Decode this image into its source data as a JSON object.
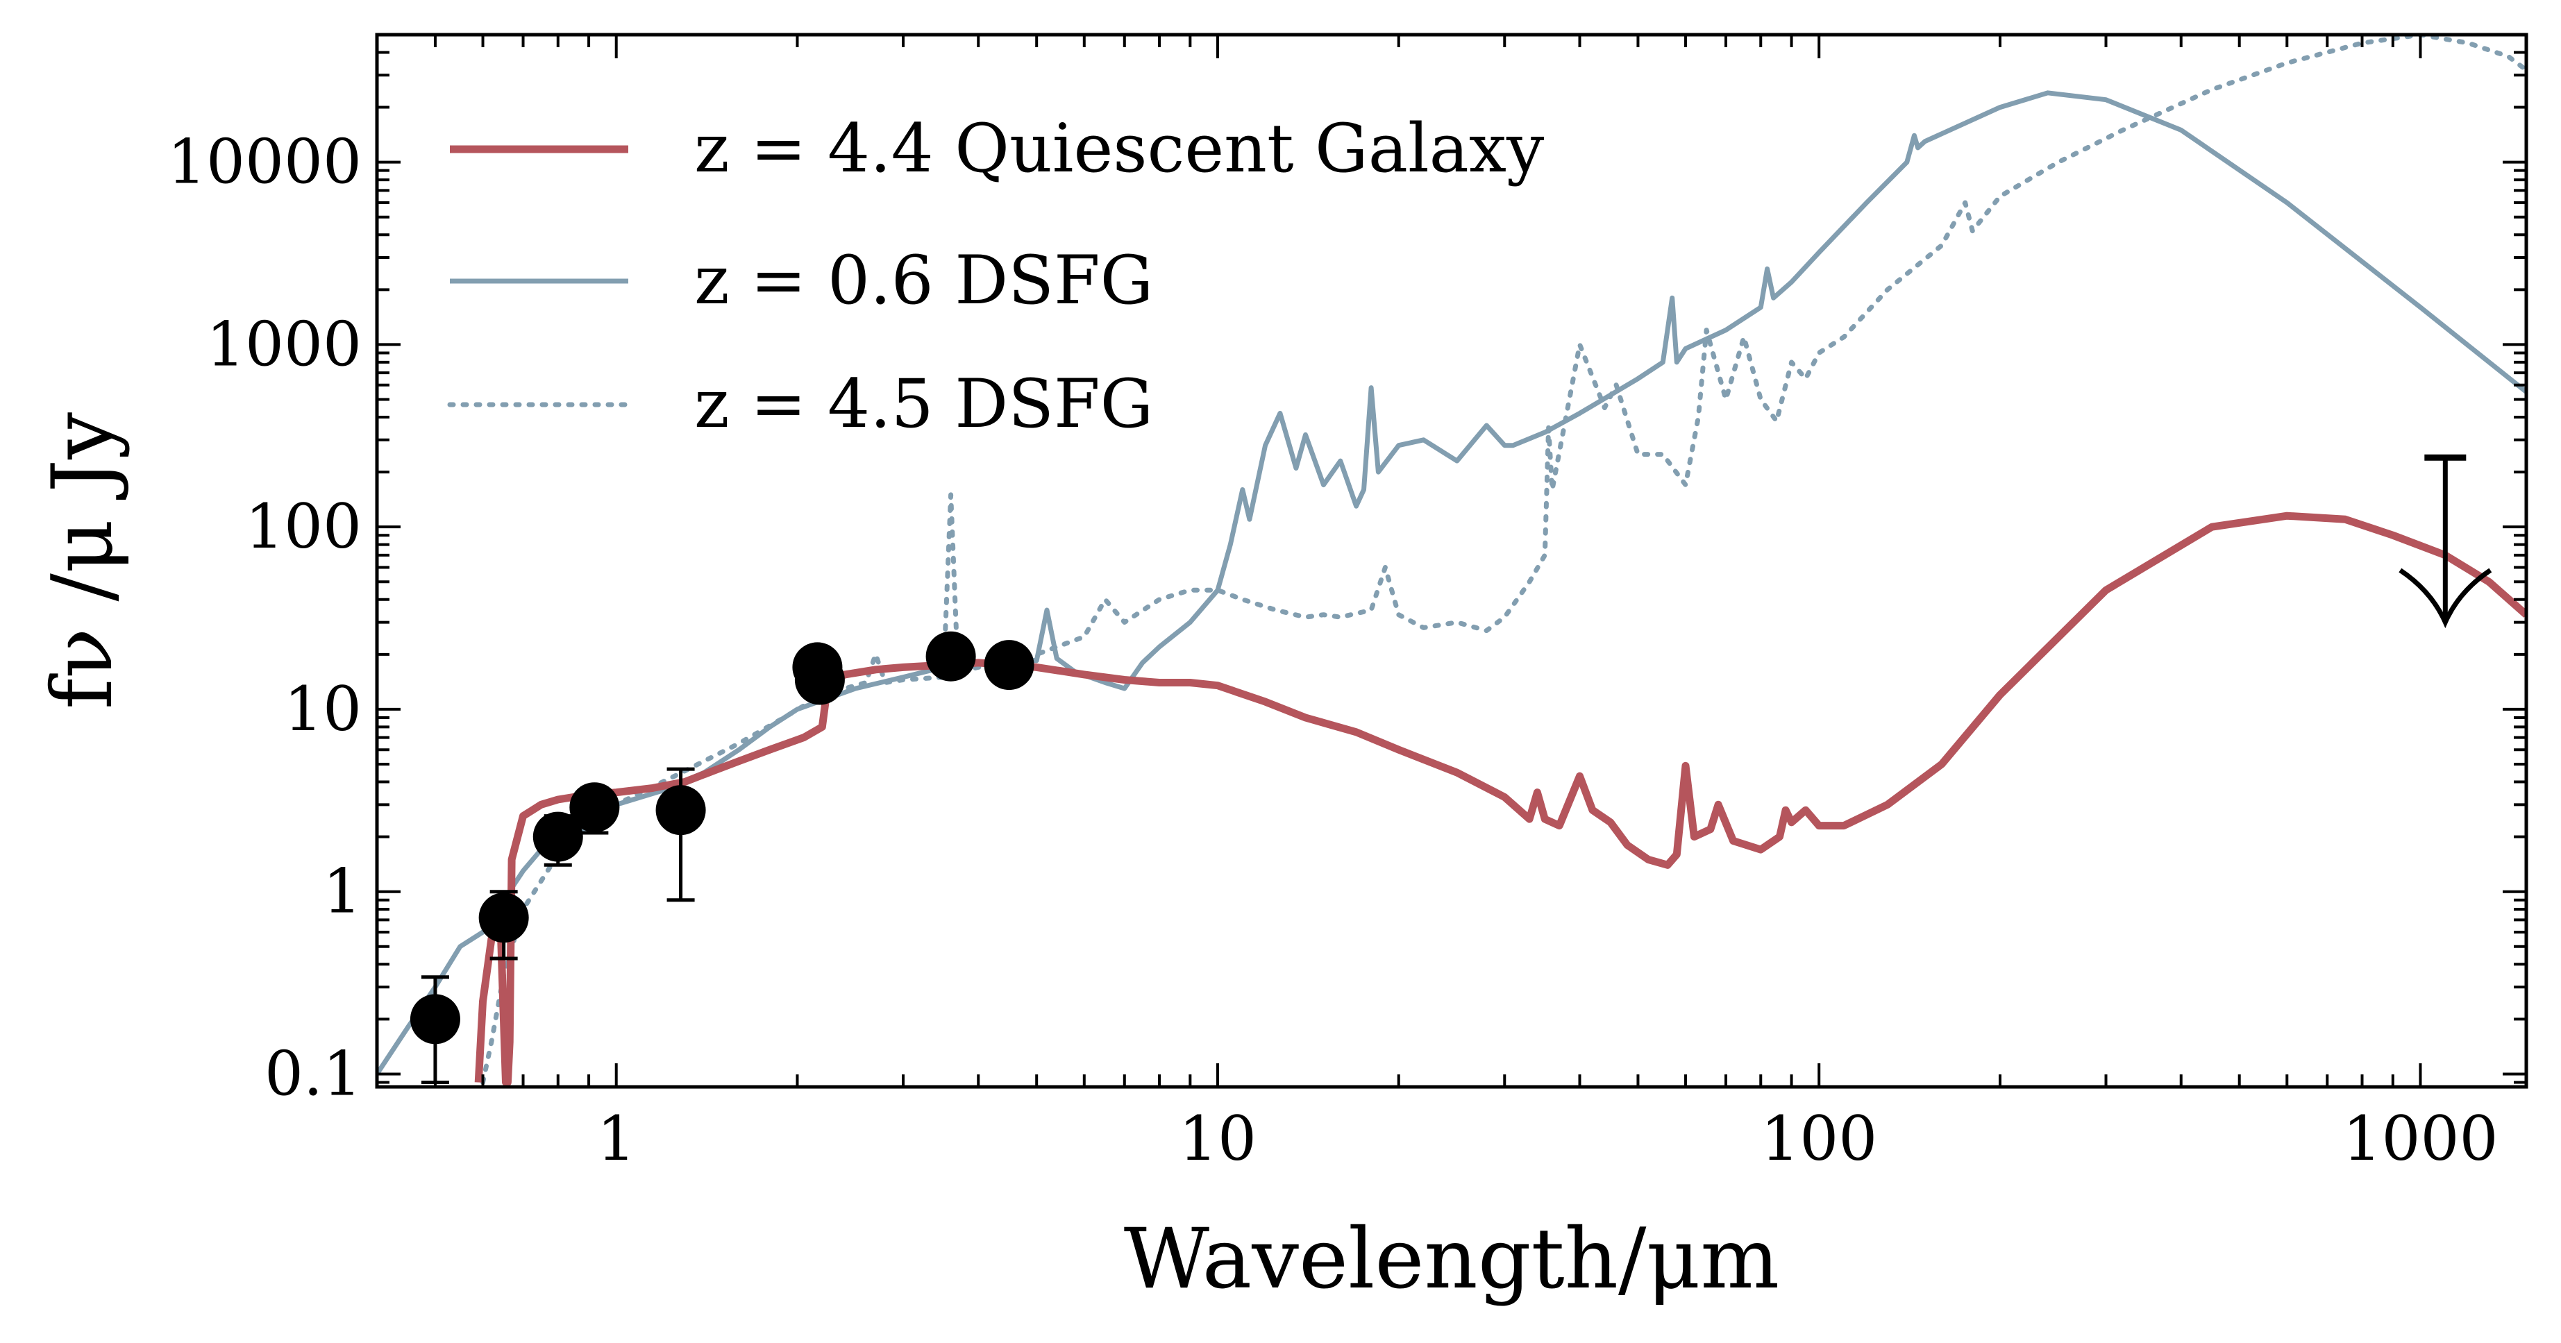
{
  "chart_data": {
    "type": "line",
    "title": "",
    "xlabel": "Wavelength/μm",
    "ylabel": "fν /μ Jy",
    "xscale": "log",
    "yscale": "log",
    "xlim": [
      0.4,
      1500
    ],
    "ylim": [
      0.085,
      50000
    ],
    "x_tick_labels": [
      {
        "value": 1,
        "label": "1"
      },
      {
        "value": 10,
        "label": "10"
      },
      {
        "value": 100,
        "label": "100"
      },
      {
        "value": 1000,
        "label": "1000"
      }
    ],
    "y_tick_labels": [
      {
        "value": 0.1,
        "label": "0.1"
      },
      {
        "value": 1,
        "label": "1"
      },
      {
        "value": 10,
        "label": "10"
      },
      {
        "value": 100,
        "label": "100"
      },
      {
        "value": 1000,
        "label": "1000"
      },
      {
        "value": 10000,
        "label": "10000"
      }
    ],
    "legend_position": "top-left",
    "series": [
      {
        "name": "z = 4.4 Quiescent Galaxy",
        "legend_label": "z = 4.4 Quiescent Galaxy",
        "color": "#b5555c",
        "style": "solid",
        "x": [
          0.59,
          0.6,
          0.62,
          0.64,
          0.655,
          0.66,
          0.665,
          0.67,
          0.7,
          0.75,
          0.8,
          0.9,
          1.0,
          1.15,
          1.3,
          1.45,
          1.6,
          1.8,
          2.05,
          2.2,
          2.25,
          2.4,
          2.7,
          3.0,
          3.5,
          4.0,
          4.5,
          5.0,
          6.0,
          7.0,
          8.0,
          9.0,
          10.0,
          12.0,
          14.0,
          17.0,
          20.0,
          25.0,
          30.0,
          33.0,
          34.0,
          35.0,
          37.0,
          40.0,
          42.0,
          45.0,
          48.0,
          52.0,
          56.0,
          58.0,
          60.0,
          62.0,
          66.0,
          68.0,
          72.0,
          80.0,
          86.0,
          88.0,
          90.0,
          95.0,
          100.0,
          110.0,
          130.0,
          160.0,
          200.0,
          300.0,
          450.0,
          600.0,
          750.0,
          900.0,
          1100.0,
          1300.0,
          1500.0
        ],
        "y": [
          0.09,
          0.25,
          0.55,
          0.9,
          0.09,
          0.09,
          0.15,
          1.5,
          2.6,
          3.0,
          3.2,
          3.4,
          3.5,
          3.7,
          4.0,
          4.6,
          5.2,
          6.0,
          7.0,
          8.0,
          14.0,
          15.5,
          16.5,
          17.0,
          17.5,
          18.0,
          17.5,
          17.0,
          15.5,
          14.5,
          14.0,
          14.0,
          13.5,
          11.0,
          9.0,
          7.5,
          6.0,
          4.5,
          3.3,
          2.5,
          3.5,
          2.5,
          2.3,
          4.3,
          2.8,
          2.4,
          1.8,
          1.5,
          1.4,
          1.6,
          4.9,
          2.0,
          2.2,
          3.0,
          1.9,
          1.7,
          2.0,
          2.8,
          2.4,
          2.8,
          2.3,
          2.3,
          3.0,
          5.0,
          12.0,
          45.0,
          100.0,
          115.0,
          110.0,
          90.0,
          70.0,
          50.0,
          33.0
        ]
      },
      {
        "name": "z = 0.6 DSFG",
        "legend_label": "z = 0.6 DSFG",
        "color": "#829eb0",
        "style": "solid",
        "x": [
          0.4,
          0.45,
          0.5,
          0.55,
          0.6,
          0.65,
          0.7,
          0.75,
          0.8,
          0.9,
          1.0,
          1.2,
          1.4,
          1.6,
          1.8,
          2.0,
          2.5,
          3.0,
          3.5,
          4.0,
          4.5,
          5.0,
          5.2,
          5.4,
          5.8,
          6.5,
          7.0,
          7.5,
          8.0,
          9.0,
          10.0,
          10.5,
          11.0,
          11.3,
          12.0,
          12.7,
          13.5,
          14.0,
          15.0,
          16.0,
          17.0,
          17.5,
          18.0,
          18.5,
          20.0,
          22.0,
          25.0,
          28.0,
          30.0,
          31.0,
          35.0,
          40.0,
          50.0,
          55.0,
          57.0,
          58.0,
          60.0,
          70.0,
          80.0,
          82.0,
          84.0,
          90.0,
          100.0,
          120.0,
          140.0,
          144.0,
          146.0,
          150.0,
          200.0,
          240.0,
          300.0,
          400.0,
          600.0,
          1000.0,
          1500.0
        ],
        "y": [
          0.1,
          0.18,
          0.3,
          0.5,
          0.6,
          0.9,
          1.3,
          1.7,
          2.1,
          2.6,
          3.0,
          3.6,
          4.5,
          6.0,
          8.0,
          10.0,
          13.0,
          15.0,
          17.0,
          18.0,
          19.0,
          18.5,
          35.0,
          19.0,
          16.0,
          14.0,
          13.0,
          18.0,
          22.0,
          30.0,
          45.0,
          80.0,
          160.0,
          110.0,
          280.0,
          420.0,
          210.0,
          320.0,
          170.0,
          230.0,
          130.0,
          160.0,
          580.0,
          200.0,
          280.0,
          300.0,
          230.0,
          360.0,
          280.0,
          280.0,
          330.0,
          420.0,
          650.0,
          800.0,
          1800.0,
          800.0,
          950.0,
          1200.0,
          1600.0,
          2600.0,
          1800.0,
          2200.0,
          3200.0,
          6000.0,
          10000.0,
          14000.0,
          12000.0,
          13000.0,
          20000.0,
          24000.0,
          22000.0,
          15000.0,
          6000.0,
          1600.0,
          550.0
        ]
      },
      {
        "name": "z = 4.5 DSFG",
        "legend_label": "z = 4.5 DSFG",
        "color": "#829eb0",
        "style": "dotted",
        "x": [
          0.6,
          0.62,
          0.65,
          0.7,
          0.8,
          0.9,
          1.0,
          1.1,
          1.25,
          1.4,
          1.6,
          1.9,
          2.2,
          2.6,
          2.7,
          2.8,
          3.0,
          3.5,
          3.6,
          3.7,
          4.0,
          4.5,
          5.0,
          6.0,
          6.5,
          7.0,
          8.0,
          9.0,
          10.0,
          11.0,
          12.5,
          14.0,
          15.0,
          16.0,
          18.0,
          19.0,
          20.0,
          22.0,
          25.0,
          28.0,
          30.0,
          33.0,
          35.0,
          35.5,
          36.0,
          40.0,
          44.0,
          46.0,
          50.0,
          55.0,
          60.0,
          63.0,
          65.0,
          70.0,
          75.0,
          80.0,
          85.0,
          90.0,
          95.0,
          100.0,
          110.0,
          130.0,
          160.0,
          175.0,
          180.0,
          200.0,
          250.0,
          320.0,
          450.0,
          600.0,
          800.0,
          1000.0,
          1200.0,
          1400.0,
          1500.0
        ],
        "y": [
          0.09,
          0.15,
          0.35,
          0.8,
          1.6,
          2.3,
          3.0,
          3.5,
          4.3,
          5.2,
          6.5,
          9.0,
          12.0,
          14.0,
          20.0,
          14.0,
          14.5,
          15.0,
          150.0,
          16.0,
          17.0,
          18.0,
          20.0,
          25.0,
          40.0,
          30.0,
          40.0,
          45.0,
          45.0,
          40.0,
          35.0,
          32.0,
          33.0,
          32.0,
          35.0,
          60.0,
          33.0,
          28.0,
          30.0,
          27.0,
          32.0,
          50.0,
          70.0,
          350.0,
          160.0,
          1000.0,
          450.0,
          600.0,
          250.0,
          250.0,
          170.0,
          400.0,
          1200.0,
          500.0,
          1100.0,
          500.0,
          380.0,
          800.0,
          650.0,
          900.0,
          1100.0,
          2000.0,
          3500.0,
          6000.0,
          4200.0,
          6500.0,
          10000.0,
          15000.0,
          25000.0,
          35000.0,
          45000.0,
          50000.0,
          45000.0,
          38000.0,
          32000.0
        ]
      }
    ],
    "points": [
      {
        "x": 0.5,
        "y": 0.2,
        "yerr_low": 0.09,
        "yerr_high": 0.34
      },
      {
        "x": 0.65,
        "y": 0.72,
        "yerr_low": 0.43,
        "yerr_high": 1.0
      },
      {
        "x": 0.8,
        "y": 2.0,
        "yerr_low": 1.4,
        "yerr_high": 2.6
      },
      {
        "x": 0.92,
        "y": 2.9,
        "yerr_low": 2.1,
        "yerr_high": 3.7
      },
      {
        "x": 1.28,
        "y": 2.8,
        "yerr_low": 0.9,
        "yerr_high": 4.7
      },
      {
        "x": 2.16,
        "y": 17.0,
        "yerr_low": 15.0,
        "yerr_high": 19.0
      },
      {
        "x": 2.18,
        "y": 14.5,
        "yerr_low": 13.0,
        "yerr_high": 16.0
      },
      {
        "x": 3.6,
        "y": 19.5,
        "yerr_low": 18.0,
        "yerr_high": 21.0
      },
      {
        "x": 4.5,
        "y": 17.5,
        "yerr_low": 16.0,
        "yerr_high": 19.0
      }
    ],
    "upper_limit": {
      "x": 1100,
      "y_top": 240,
      "y_arrow_tip": 30
    }
  }
}
